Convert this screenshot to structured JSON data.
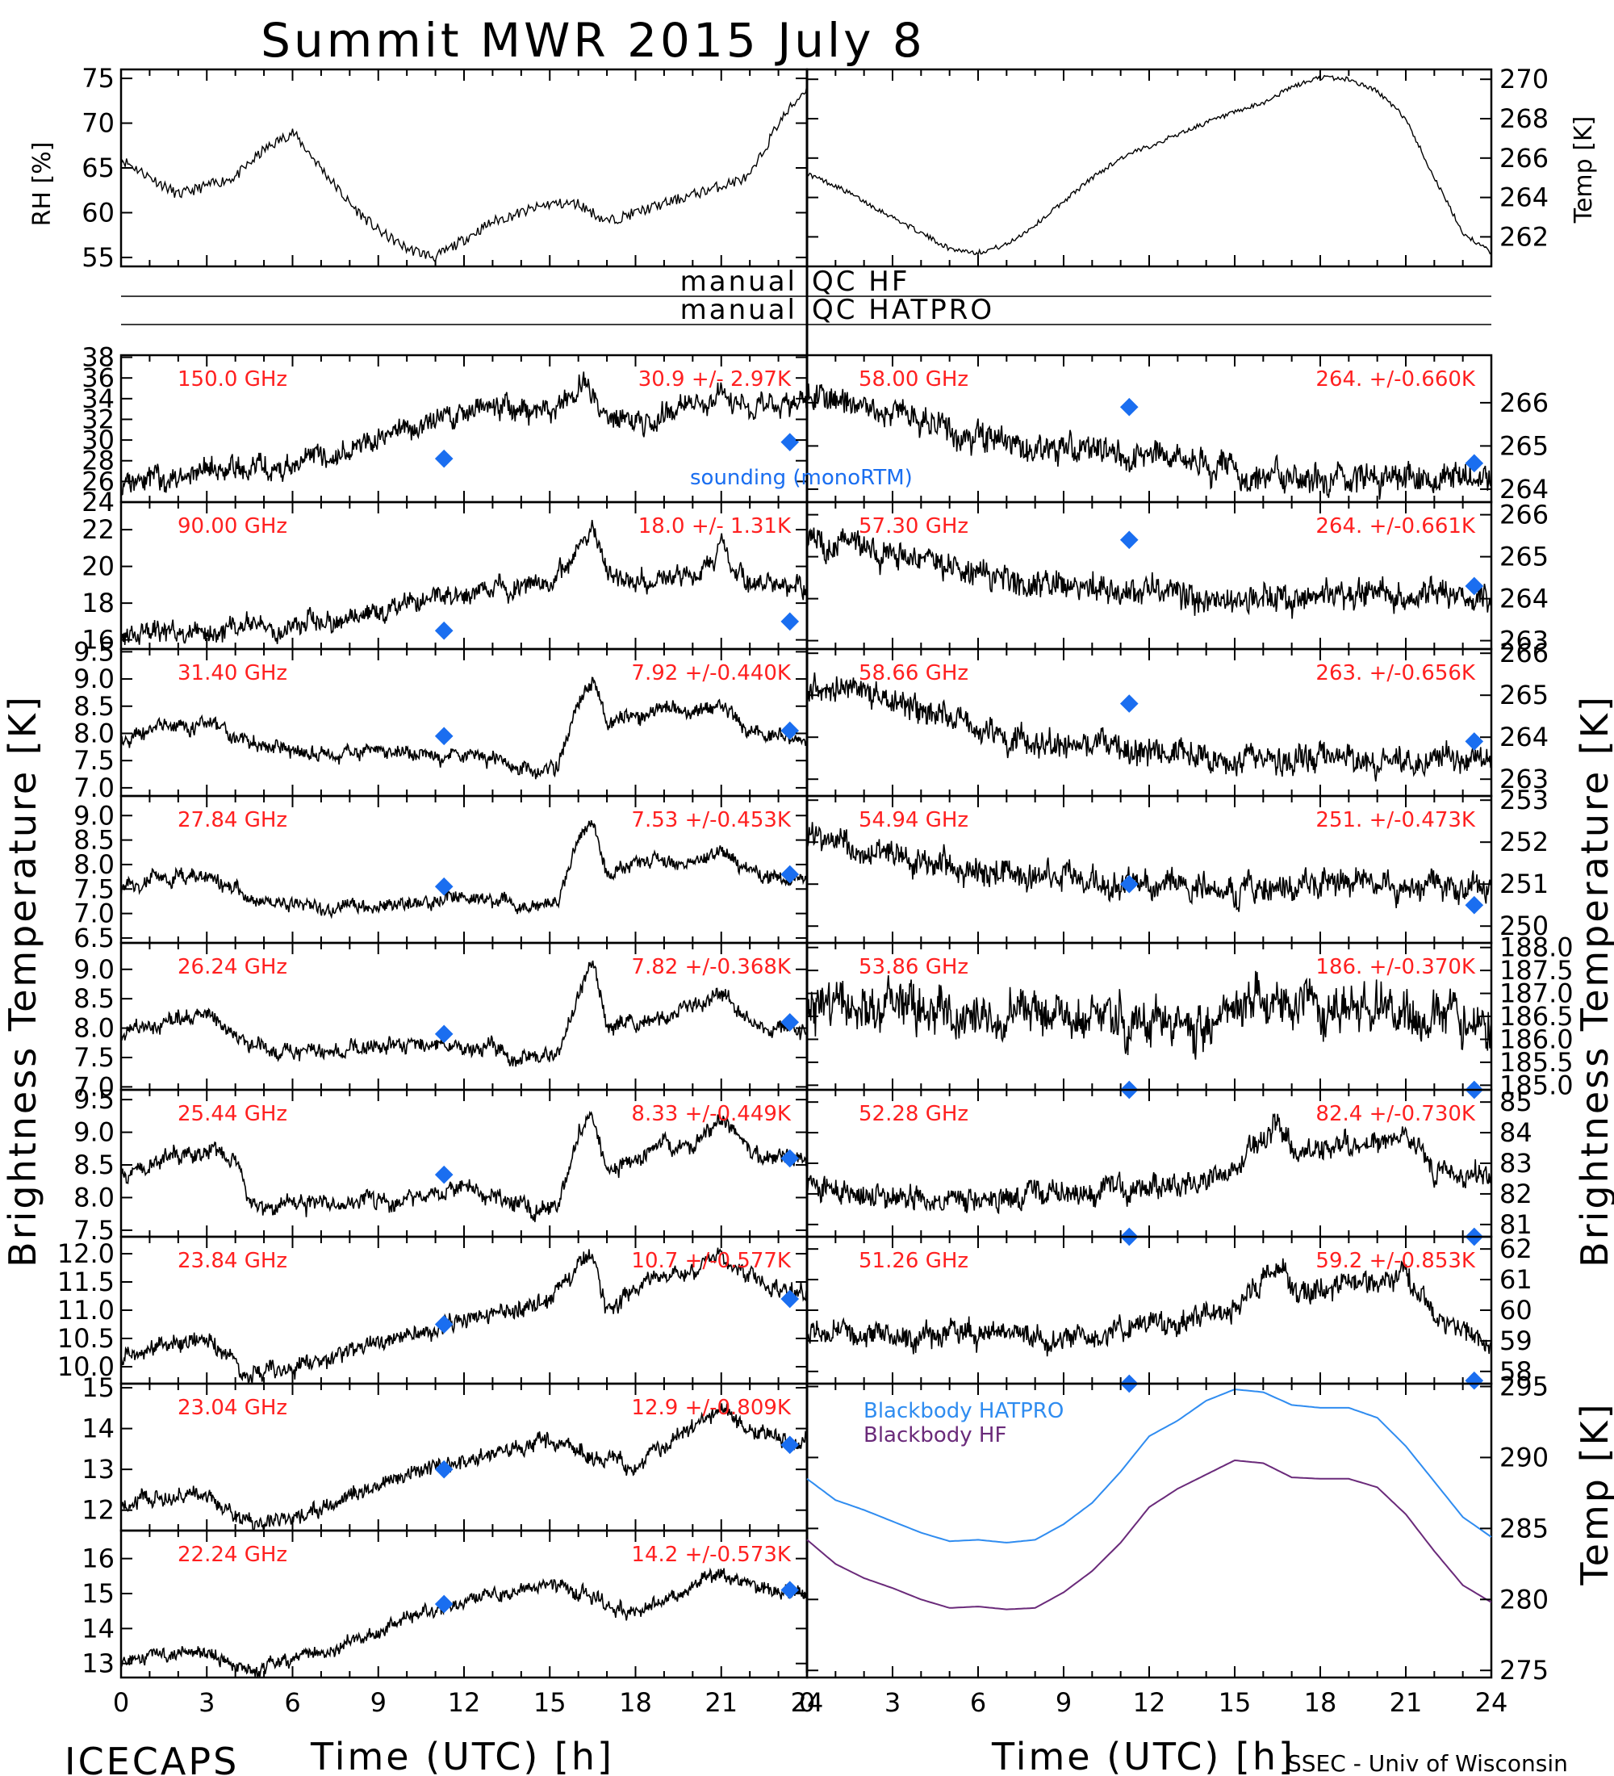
{
  "title": "Summit MWR 2015 July  8",
  "footer": {
    "left": "ICECAPS",
    "right": "SSEC - Univ of Wisconsin"
  },
  "colors": {
    "trace": "#000000",
    "sounding": "#1a6ef0",
    "channel_text": "#ff2020",
    "bb_hatpro": "#2f8cf0",
    "bb_hf": "#6a2a7a"
  },
  "qc_labels": {
    "hf_left": "manual",
    "hf_right": "QC HF",
    "hatpro_left": "manual",
    "hatpro_right": "QC HATPRO"
  },
  "axis_labels": {
    "left_big": "Brightness Temperature [K]",
    "right_big": "Brightness Temperature [K]",
    "bb_temp": "Temp [K]",
    "rh": "RH [%]",
    "temp": "Temp [K]",
    "xlabel_left": "Time (UTC) [h]",
    "xlabel_right": "Time (UTC) [h]"
  },
  "legend": {
    "sounding": "sounding (monoRTM)",
    "bb_hatpro": "Blackbody HATPRO",
    "bb_hf": "Blackbody HF"
  },
  "chart_data": [
    {
      "id": "rh",
      "type": "line",
      "ylabel": "RH [%]",
      "ylim": [
        54,
        76
      ],
      "yticks": [
        "55",
        "60",
        "65",
        "70",
        "75"
      ],
      "x": [
        0,
        1,
        2,
        3,
        4,
        5,
        6,
        7,
        8,
        9,
        10,
        11,
        12,
        13,
        14,
        15,
        16,
        17,
        18,
        19,
        20,
        21,
        22,
        23,
        24
      ],
      "values": [
        66,
        64,
        62,
        63,
        64,
        67,
        69,
        65,
        61,
        58,
        56,
        55,
        57,
        59,
        60,
        61,
        61,
        59,
        60,
        61,
        62,
        63,
        64,
        70,
        74
      ]
    },
    {
      "id": "temp",
      "type": "line",
      "ylabel": "Temp [K]",
      "ylim": [
        260.5,
        270.5
      ],
      "yticks": [
        "262",
        "264",
        "266",
        "268",
        "270"
      ],
      "x": [
        0,
        1,
        2,
        3,
        4,
        5,
        6,
        7,
        8,
        9,
        10,
        11,
        12,
        13,
        14,
        15,
        16,
        17,
        18,
        19,
        20,
        21,
        22,
        23,
        24
      ],
      "values": [
        265.2,
        264.6,
        263.8,
        263.0,
        262.2,
        261.4,
        261.2,
        261.6,
        262.6,
        263.8,
        265.0,
        266.0,
        266.6,
        267.2,
        267.8,
        268.3,
        268.8,
        269.6,
        270.1,
        270.0,
        269.4,
        268.0,
        265.0,
        262.2,
        261.2
      ]
    },
    {
      "id": "150.0",
      "type": "line",
      "label": "150.0 GHz",
      "stat": "30.9 +/-  2.97K",
      "ylim": [
        24,
        38.2
      ],
      "yticks": [
        "24",
        "26",
        "28",
        "30",
        "32",
        "34",
        "36",
        "38"
      ],
      "x": [
        0,
        1.5,
        3,
        4.5,
        6,
        7.5,
        9,
        10.5,
        12,
        13.5,
        15,
        15.8,
        16.3,
        17,
        18,
        19.5,
        21,
        22,
        23,
        24
      ],
      "values": [
        25.5,
        26.5,
        27,
        27.3,
        27.8,
        28.5,
        30,
        32,
        33,
        33.5,
        32.5,
        34,
        36,
        32.5,
        31.5,
        33,
        34.5,
        33.5,
        33,
        34.2
      ],
      "sounding": [
        [
          11.3,
          28.2
        ],
        [
          23.4,
          29.8
        ]
      ],
      "noise": 1.0
    },
    {
      "id": "58.00",
      "type": "line",
      "label": "58.00 GHz",
      "stat": "264. +/-0.660K",
      "ylim": [
        263.7,
        267.1
      ],
      "yticks": [
        "264",
        "265",
        "266"
      ],
      "x": [
        0,
        2,
        4,
        6,
        8,
        10,
        12,
        14,
        16,
        18,
        20,
        22,
        24
      ],
      "values": [
        266.4,
        266.0,
        265.6,
        265.2,
        265.0,
        264.9,
        264.8,
        264.6,
        264.3,
        264.2,
        264.3,
        264.3,
        264.3
      ],
      "sounding": [
        [
          11.3,
          265.9
        ],
        [
          23.4,
          264.6
        ]
      ],
      "noise": 0.3
    },
    {
      "id": "90.00",
      "type": "line",
      "label": "90.00 GHz",
      "stat": "18.0 +/-  1.31K",
      "ylim": [
        15.5,
        23.5
      ],
      "yticks": [
        "16",
        "18",
        "20",
        "22"
      ],
      "x": [
        0,
        2,
        4,
        6,
        8,
        10,
        12,
        14,
        15,
        16,
        16.5,
        17,
        18,
        20,
        21,
        22,
        24
      ],
      "values": [
        16.3,
        16.5,
        16.6,
        16.8,
        17.2,
        18,
        18.5,
        18.8,
        19,
        21,
        22,
        19.5,
        19,
        19.5,
        21,
        19,
        19
      ],
      "sounding": [
        [
          11.3,
          16.5
        ],
        [
          23.4,
          17.0
        ]
      ],
      "noise": 0.5
    },
    {
      "id": "57.30",
      "type": "line",
      "label": "57.30 GHz",
      "stat": "264. +/-0.661K",
      "ylim": [
        262.8,
        266.3
      ],
      "yticks": [
        "263",
        "264",
        "265",
        "266"
      ],
      "x": [
        0,
        2,
        4,
        6,
        8,
        10,
        12,
        14,
        16,
        18,
        20,
        22,
        24
      ],
      "values": [
        265.5,
        265.2,
        264.9,
        264.6,
        264.4,
        264.3,
        264.2,
        264.0,
        264.0,
        264.1,
        264.1,
        264.1,
        264.0
      ],
      "sounding": [
        [
          11.3,
          265.4
        ],
        [
          23.4,
          264.3
        ]
      ],
      "noise": 0.3
    },
    {
      "id": "31.40",
      "type": "line",
      "label": "31.40 GHz",
      "stat": "7.92 +/-0.440K",
      "ylim": [
        6.85,
        9.55
      ],
      "yticks": [
        "7.0",
        "7.5",
        "8.0",
        "8.5",
        "9.0",
        "9.5"
      ],
      "x": [
        0,
        1.5,
        3,
        4.5,
        6,
        7.5,
        9,
        10.5,
        12,
        13.5,
        14.5,
        15.3,
        16,
        16.5,
        17,
        18,
        19,
        20,
        21,
        22,
        23,
        24
      ],
      "values": [
        7.9,
        8.1,
        8.2,
        7.8,
        7.7,
        7.6,
        7.7,
        7.6,
        7.6,
        7.5,
        7.2,
        7.4,
        8.6,
        9.0,
        8.2,
        8.3,
        8.5,
        8.4,
        8.6,
        8.0,
        7.9,
        7.9
      ],
      "sounding": [
        [
          11.3,
          7.95
        ],
        [
          23.4,
          8.05
        ]
      ],
      "noise": 0.12
    },
    {
      "id": "58.66",
      "type": "line",
      "label": "58.66 GHz",
      "stat": "263. +/-0.656K",
      "ylim": [
        262.6,
        266.1
      ],
      "yticks": [
        "263",
        "264",
        "265",
        "266"
      ],
      "x": [
        0,
        2,
        4,
        6,
        8,
        10,
        12,
        14,
        16,
        18,
        20,
        22,
        24
      ],
      "values": [
        265.3,
        265.0,
        264.6,
        264.2,
        263.9,
        263.8,
        263.7,
        263.5,
        263.4,
        263.5,
        263.4,
        263.5,
        263.4
      ],
      "sounding": [
        [
          11.3,
          264.8
        ],
        [
          23.4,
          263.9
        ]
      ],
      "noise": 0.3
    },
    {
      "id": "27.84",
      "type": "line",
      "label": "27.84 GHz",
      "stat": "7.53 +/-0.453K",
      "ylim": [
        6.4,
        9.4
      ],
      "yticks": [
        "6.5",
        "7.0",
        "7.5",
        "8.0",
        "8.5",
        "9.0"
      ],
      "x": [
        0,
        1.5,
        3,
        4.5,
        6,
        7.5,
        9,
        10.5,
        12,
        13.5,
        14.5,
        15.3,
        16,
        16.5,
        17,
        18,
        19,
        20,
        21,
        22,
        23,
        24
      ],
      "values": [
        7.5,
        7.7,
        7.8,
        7.3,
        7.2,
        7.1,
        7.2,
        7.2,
        7.3,
        7.3,
        7.1,
        7.3,
        8.5,
        8.8,
        7.8,
        8.0,
        8.1,
        8.0,
        8.3,
        7.8,
        7.7,
        7.7
      ],
      "sounding": [
        [
          11.3,
          7.55
        ],
        [
          23.4,
          7.8
        ]
      ],
      "noise": 0.13
    },
    {
      "id": "54.94",
      "type": "line",
      "label": "54.94 GHz",
      "stat": "251. +/-0.473K",
      "ylim": [
        249.6,
        253.1
      ],
      "yticks": [
        "250",
        "251",
        "252",
        "253"
      ],
      "x": [
        0,
        2,
        4,
        6,
        8,
        10,
        12,
        14,
        16,
        18,
        20,
        22,
        24
      ],
      "values": [
        252.2,
        251.8,
        251.5,
        251.3,
        251.2,
        251.1,
        251.0,
        250.9,
        250.9,
        251.0,
        251.0,
        250.9,
        250.8
      ],
      "sounding": [
        [
          11.3,
          251.0
        ],
        [
          23.4,
          250.5
        ]
      ],
      "noise": 0.3
    },
    {
      "id": "26.24",
      "type": "line",
      "label": "26.24 GHz",
      "stat": "7.82 +/-0.368K",
      "ylim": [
        6.95,
        9.45
      ],
      "yticks": [
        "7.0",
        "7.5",
        "8.0",
        "8.5",
        "9.0"
      ],
      "x": [
        0,
        1.5,
        3,
        4.5,
        6,
        7.5,
        9,
        10.5,
        12,
        13.5,
        14.5,
        15.3,
        16,
        16.5,
        17,
        18,
        19,
        20,
        21,
        22,
        23,
        24
      ],
      "values": [
        7.9,
        8.1,
        8.3,
        7.7,
        7.6,
        7.6,
        7.7,
        7.7,
        7.7,
        7.6,
        7.4,
        7.6,
        8.6,
        9.1,
        8.0,
        8.1,
        8.2,
        8.4,
        8.6,
        8.1,
        8.0,
        8.0
      ],
      "sounding": [
        [
          11.3,
          7.9
        ],
        [
          23.4,
          8.1
        ]
      ],
      "noise": 0.12
    },
    {
      "id": "53.86",
      "type": "line",
      "label": "53.86 GHz",
      "stat": "186. +/-0.370K",
      "ylim": [
        184.9,
        188.1
      ],
      "yticks": [
        "185.0",
        "185.5",
        "186.0",
        "186.5",
        "187.0",
        "187.5",
        "188.0"
      ],
      "x": [
        0,
        2,
        4,
        6,
        8,
        10,
        12,
        14,
        16,
        18,
        20,
        22,
        24
      ],
      "values": [
        186.8,
        186.7,
        186.6,
        186.6,
        186.5,
        186.5,
        186.3,
        186.2,
        186.8,
        186.6,
        186.6,
        186.5,
        186.5
      ],
      "sounding": [
        [
          11.3,
          184.9
        ],
        [
          23.4,
          184.9
        ]
      ],
      "noise": 0.45
    },
    {
      "id": "25.44",
      "type": "line",
      "label": "25.44 GHz",
      "stat": "8.33 +/-0.449K",
      "ylim": [
        7.4,
        9.65
      ],
      "yticks": [
        "7.5",
        "8.0",
        "8.5",
        "9.0",
        "9.5"
      ],
      "x": [
        0,
        1.5,
        3,
        4,
        4.5,
        6,
        7.5,
        9,
        10.5,
        12,
        13.5,
        14.5,
        15.3,
        16,
        16.5,
        17,
        18,
        19,
        20,
        21,
        22,
        23,
        24
      ],
      "values": [
        8.4,
        8.6,
        8.7,
        8.6,
        7.9,
        7.9,
        7.9,
        8.0,
        8.0,
        8.1,
        8.0,
        7.8,
        7.9,
        9.0,
        9.3,
        8.4,
        8.6,
        8.8,
        8.8,
        9.2,
        8.7,
        8.6,
        8.6
      ],
      "sounding": [
        [
          11.3,
          8.35
        ],
        [
          23.4,
          8.6
        ]
      ],
      "noise": 0.12
    },
    {
      "id": "52.28",
      "type": "line",
      "label": "52.28 GHz",
      "stat": "82.4 +/-0.730K",
      "ylim": [
        80.6,
        85.4
      ],
      "yticks": [
        "81",
        "82",
        "83",
        "84",
        "85"
      ],
      "x": [
        0,
        2,
        4,
        6,
        8,
        10,
        12,
        14,
        15,
        16,
        16.5,
        17,
        18,
        20,
        21,
        22,
        24
      ],
      "values": [
        82.2,
        82.0,
        81.8,
        81.8,
        82.0,
        82.0,
        82.2,
        82.5,
        82.9,
        84.0,
        84.5,
        83.4,
        83.4,
        83.6,
        84.0,
        83.0,
        82.4
      ],
      "sounding": [
        [
          11.3,
          80.6
        ],
        [
          23.4,
          80.6
        ]
      ],
      "noise": 0.35
    },
    {
      "id": "23.84",
      "type": "line",
      "label": "23.84 GHz",
      "stat": "10.7 +/-0.577K",
      "ylim": [
        9.7,
        12.3
      ],
      "yticks": [
        "10.0",
        "10.5",
        "11.0",
        "11.5",
        "12.0"
      ],
      "x": [
        0,
        1.5,
        3,
        4.5,
        6,
        7.5,
        9,
        10.5,
        12,
        13.5,
        15,
        16,
        16.5,
        17,
        18,
        19,
        20,
        21,
        22,
        23,
        24
      ],
      "values": [
        10.2,
        10.4,
        10.5,
        9.9,
        10.0,
        10.2,
        10.4,
        10.6,
        10.8,
        11.0,
        11.1,
        11.9,
        12.0,
        11.0,
        11.3,
        11.6,
        11.7,
        12.0,
        11.6,
        11.3,
        11.3
      ],
      "sounding": [
        [
          11.3,
          10.75
        ],
        [
          23.4,
          11.2
        ]
      ],
      "noise": 0.14
    },
    {
      "id": "51.26",
      "type": "line",
      "label": "51.26 GHz",
      "stat": "59.2 +/-0.853K",
      "ylim": [
        57.6,
        62.4
      ],
      "yticks": [
        "58",
        "59",
        "60",
        "61",
        "62"
      ],
      "x": [
        0,
        2,
        4,
        6,
        8,
        10,
        12,
        14,
        15,
        16,
        16.5,
        17,
        18,
        20,
        21,
        22,
        24
      ],
      "values": [
        59.4,
        59.3,
        59.2,
        59.1,
        59.2,
        59.3,
        59.5,
        59.8,
        60.0,
        61.0,
        61.5,
        60.6,
        60.7,
        60.8,
        61.2,
        59.8,
        59.0
      ],
      "sounding": [
        [
          11.3,
          57.6
        ],
        [
          23.4,
          57.7
        ]
      ],
      "noise": 0.35
    },
    {
      "id": "23.04",
      "type": "line",
      "label": "23.04 GHz",
      "stat": "12.9 +/-0.809K",
      "ylim": [
        11.5,
        15.1
      ],
      "yticks": [
        "12",
        "13",
        "14",
        "15"
      ],
      "x": [
        0,
        1.5,
        3,
        4.5,
        6,
        7.5,
        9,
        10.5,
        12,
        13.5,
        15,
        16,
        17,
        18,
        19,
        20,
        21,
        22,
        23,
        24
      ],
      "values": [
        12.1,
        12.3,
        12.4,
        11.7,
        11.8,
        12.1,
        12.6,
        13.0,
        13.2,
        13.5,
        13.7,
        13.5,
        13.2,
        13.0,
        13.6,
        14.0,
        14.5,
        14.0,
        13.7,
        13.7
      ],
      "sounding": [
        [
          11.3,
          13.0
        ],
        [
          23.4,
          13.6
        ]
      ],
      "noise": 0.18
    },
    {
      "id": "22.24",
      "type": "line",
      "label": "22.24 GHz",
      "stat": "14.2 +/-0.573K",
      "ylim": [
        12.6,
        16.8
      ],
      "yticks": [
        "13",
        "14",
        "15",
        "16"
      ],
      "x": [
        0,
        1.5,
        3,
        4.5,
        6,
        7.5,
        9,
        10.5,
        12,
        13.5,
        15,
        16,
        17,
        18,
        19,
        20,
        21,
        22,
        23,
        24
      ],
      "values": [
        13.1,
        13.3,
        13.3,
        12.8,
        13.1,
        13.5,
        13.9,
        14.4,
        14.8,
        15.0,
        15.2,
        15.0,
        14.6,
        14.4,
        14.8,
        15.2,
        15.6,
        15.3,
        15.0,
        15.0
      ],
      "sounding": [
        [
          11.3,
          14.7
        ],
        [
          23.4,
          15.1
        ]
      ],
      "noise": 0.18
    },
    {
      "id": "blackbody",
      "type": "line",
      "ylabel": "Temp [K]",
      "ylim": [
        274.5,
        295.2
      ],
      "yticks": [
        "275",
        "280",
        "285",
        "290",
        "295"
      ],
      "x": [
        0,
        1,
        2,
        3,
        4,
        5,
        6,
        7,
        8,
        9,
        10,
        11,
        12,
        13,
        14,
        15,
        16,
        17,
        18,
        19,
        20,
        21,
        22,
        23,
        24
      ],
      "series": [
        {
          "name": "Blackbody HATPRO",
          "values": [
            288.5,
            287,
            286.3,
            285.5,
            284.7,
            284.1,
            284.2,
            284.0,
            284.2,
            285.3,
            286.8,
            289,
            291.5,
            292.6,
            294.0,
            294.8,
            294.6,
            293.7,
            293.5,
            293.5,
            292.8,
            290.8,
            288.3,
            285.8,
            284.4
          ]
        },
        {
          "name": "Blackbody HF",
          "values": [
            284.2,
            282.5,
            281.5,
            280.8,
            280.0,
            279.4,
            279.5,
            279.3,
            279.4,
            280.5,
            282,
            284,
            286.5,
            287.8,
            288.8,
            289.8,
            289.6,
            288.6,
            288.5,
            288.5,
            287.9,
            286.0,
            283.4,
            281.0,
            279.8
          ]
        }
      ]
    }
  ],
  "time_axis": {
    "ticks": [
      "0",
      "3",
      "6",
      "9",
      "12",
      "15",
      "18",
      "21",
      "24"
    ],
    "xlim": [
      0,
      24
    ]
  }
}
